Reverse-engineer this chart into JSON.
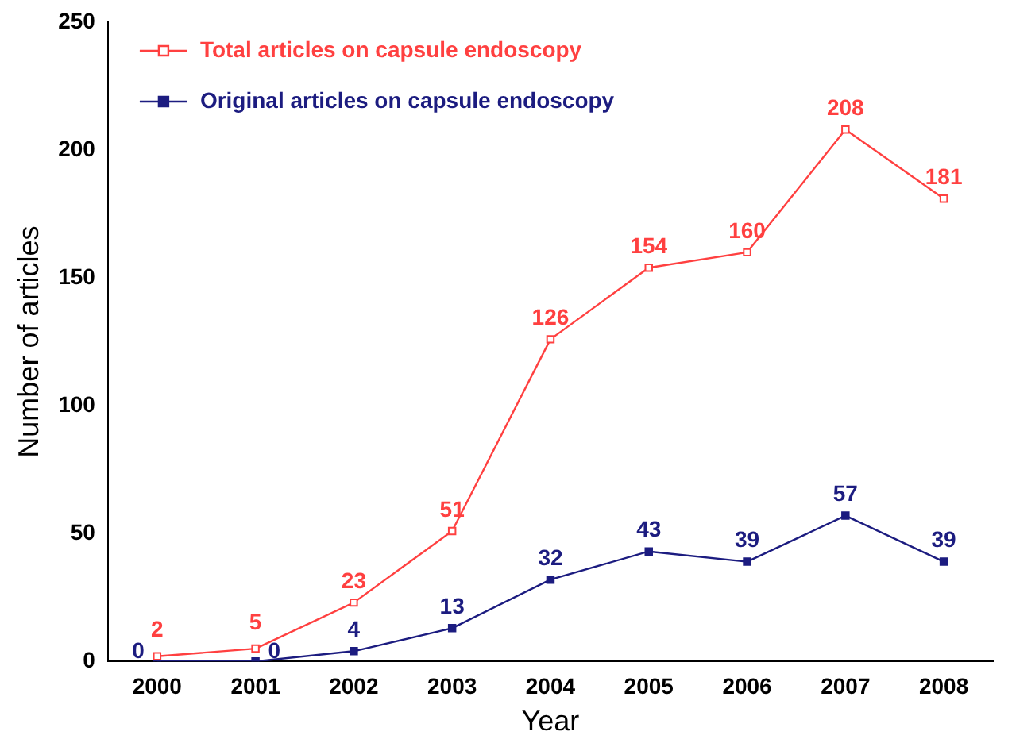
{
  "chart_data": {
    "type": "line",
    "xlabel": "Year",
    "ylabel": "Number of articles",
    "categories": [
      "2000",
      "2001",
      "2002",
      "2003",
      "2004",
      "2005",
      "2006",
      "2007",
      "2008"
    ],
    "series": [
      {
        "name": "Total articles on capsule endoscopy",
        "color": "#ff4040",
        "marker": "square",
        "values": [
          2,
          5,
          23,
          51,
          126,
          154,
          160,
          208,
          181
        ]
      },
      {
        "name": "Original articles on capsule endoscopy",
        "color": "#1c1c80",
        "marker": "square",
        "values": [
          0,
          0,
          4,
          13,
          32,
          43,
          39,
          57,
          39
        ]
      }
    ],
    "ylim": [
      0,
      250
    ],
    "yticks": [
      0,
      50,
      100,
      150,
      200,
      250
    ],
    "grid": false,
    "legend": "top left",
    "data_labels": true,
    "line_style": "solid"
  }
}
